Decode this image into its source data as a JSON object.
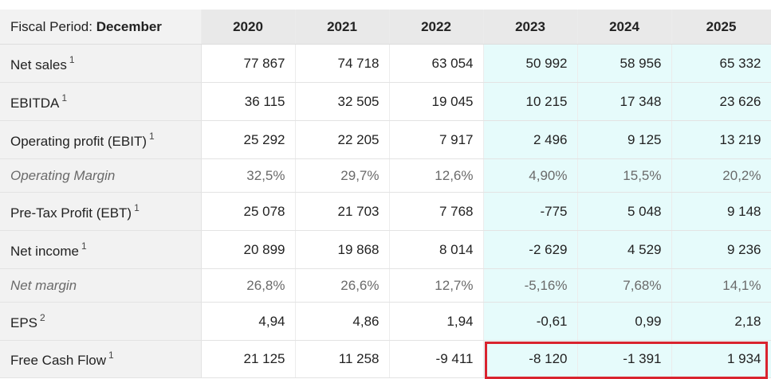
{
  "header": {
    "period_label": "Fiscal Period: ",
    "period_value": "December",
    "years": [
      "2020",
      "2021",
      "2022",
      "2023",
      "2024",
      "2025"
    ]
  },
  "rows": [
    {
      "label": "Net sales",
      "note": "1",
      "values": [
        "77 867",
        "74 718",
        "63 054",
        "50 992",
        "58 956",
        "65 332"
      ]
    },
    {
      "label": "EBITDA",
      "note": "1",
      "values": [
        "36 115",
        "32 505",
        "19 045",
        "10 215",
        "17 348",
        "23 626"
      ]
    },
    {
      "label": "Operating profit (EBIT)",
      "note": "1",
      "values": [
        "25 292",
        "22 205",
        "7 917",
        "2 496",
        "9 125",
        "13 219"
      ]
    },
    {
      "label": "Operating Margin",
      "note": "",
      "values": [
        "32,5%",
        "29,7%",
        "12,6%",
        "4,90%",
        "15,5%",
        "20,2%"
      ]
    },
    {
      "label": "Pre-Tax Profit (EBT)",
      "note": "1",
      "values": [
        "25 078",
        "21 703",
        "7 768",
        "-775",
        "5 048",
        "9 148"
      ]
    },
    {
      "label": "Net income",
      "note": "1",
      "values": [
        "20 899",
        "19 868",
        "8 014",
        "-2 629",
        "4 529",
        "9 236"
      ]
    },
    {
      "label": "Net margin",
      "note": "",
      "values": [
        "26,8%",
        "26,6%",
        "12,7%",
        "-5,16%",
        "7,68%",
        "14,1%"
      ]
    },
    {
      "label": "EPS",
      "note": "2",
      "values": [
        "4,94",
        "4,86",
        "1,94",
        "-0,61",
        "0,99",
        "2,18"
      ]
    },
    {
      "label": "Free Cash Flow",
      "note": "1",
      "values": [
        "21 125",
        "11 258",
        "-9 411",
        "-8 120",
        "-1 391",
        "1 934"
      ]
    }
  ],
  "colors": {
    "estimate_background": "#e6fbfb",
    "highlight_border": "#d9232e",
    "label_background": "#f2f2f2",
    "header_background": "#e9e9e9"
  }
}
